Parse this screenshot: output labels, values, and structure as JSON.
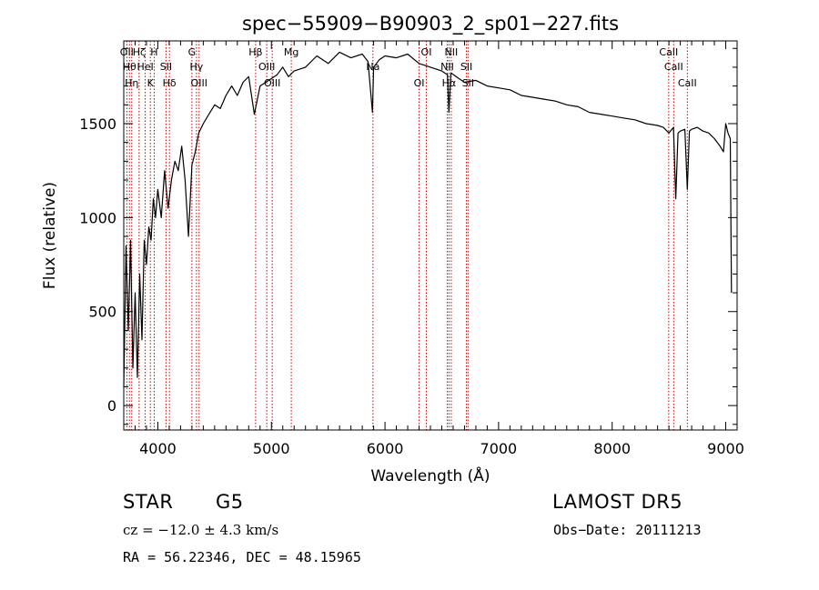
{
  "chart_data": {
    "type": "line",
    "title": "spec−55909−B90903_2_sp01−227.fits",
    "xlabel": "Wavelength (Å)",
    "ylabel": "Flux (relative)",
    "xlim": [
      3700,
      9100
    ],
    "ylim": [
      -130,
      1940
    ],
    "x_ticks": [
      4000,
      5000,
      6000,
      7000,
      8000,
      9000
    ],
    "y_ticks": [
      0,
      500,
      1000,
      1500
    ],
    "line_color": "#000000",
    "marker_color": "#cc0000",
    "grid": false,
    "series": [
      {
        "x": [
          3700,
          3720,
          3740,
          3760,
          3780,
          3800,
          3820,
          3840,
          3860,
          3880,
          3900,
          3920,
          3940,
          3960,
          3980,
          4000,
          4030,
          4060,
          4090,
          4120,
          4150,
          4180,
          4210,
          4240,
          4270,
          4300,
          4330,
          4360,
          4400,
          4450,
          4500,
          4550,
          4600,
          4650,
          4700,
          4750,
          4800,
          4850,
          4900,
          4950,
          5000,
          5050,
          5100,
          5150,
          5200,
          5300,
          5400,
          5500,
          5600,
          5700,
          5800,
          5850,
          5890,
          5900,
          5950,
          6000,
          6100,
          6200,
          6300,
          6400,
          6500,
          6550,
          6563,
          6580,
          6650,
          6700,
          6800,
          6900,
          7000,
          7100,
          7200,
          7300,
          7400,
          7500,
          7600,
          7700,
          7800,
          7900,
          8000,
          8100,
          8200,
          8300,
          8400,
          8450,
          8500,
          8540,
          8560,
          8580,
          8600,
          8640,
          8662,
          8680,
          8700,
          8750,
          8800,
          8850,
          8900,
          8950,
          8980,
          9000,
          9020,
          9040,
          9050
        ],
        "y": [
          100,
          850,
          400,
          880,
          200,
          600,
          150,
          700,
          350,
          880,
          750,
          950,
          880,
          1100,
          1000,
          1150,
          1000,
          1250,
          1050,
          1200,
          1300,
          1250,
          1380,
          1200,
          900,
          1280,
          1350,
          1450,
          1500,
          1550,
          1600,
          1580,
          1650,
          1700,
          1650,
          1720,
          1750,
          1550,
          1700,
          1720,
          1740,
          1760,
          1800,
          1750,
          1780,
          1800,
          1860,
          1820,
          1880,
          1850,
          1870,
          1830,
          1560,
          1800,
          1840,
          1860,
          1850,
          1870,
          1820,
          1800,
          1780,
          1760,
          1560,
          1770,
          1740,
          1720,
          1730,
          1700,
          1690,
          1680,
          1650,
          1640,
          1630,
          1620,
          1600,
          1590,
          1560,
          1550,
          1540,
          1530,
          1520,
          1500,
          1490,
          1480,
          1450,
          1480,
          1100,
          1450,
          1460,
          1470,
          1150,
          1460,
          1470,
          1480,
          1460,
          1450,
          1420,
          1380,
          1350,
          1500,
          1450,
          1420,
          600
        ]
      }
    ],
    "line_markers": [
      {
        "x": 3727,
        "label": "OII"
      },
      {
        "x": 3750,
        "label": "Hθ"
      },
      {
        "x": 3770,
        "label": "Hη"
      },
      {
        "x": 3835,
        "label": "Hζ"
      },
      {
        "x": 3889,
        "label": "HeI"
      },
      {
        "x": 3934,
        "label": "K"
      },
      {
        "x": 3968,
        "label": "H"
      },
      {
        "x": 4072,
        "label": "SII"
      },
      {
        "x": 4102,
        "label": "Hδ"
      },
      {
        "x": 4300,
        "label": "G"
      },
      {
        "x": 4340,
        "label": "Hγ"
      },
      {
        "x": 4363,
        "label": "OIII"
      },
      {
        "x": 4861,
        "label": "Hβ"
      },
      {
        "x": 4959,
        "label": "OIII"
      },
      {
        "x": 5007,
        "label": "OIII"
      },
      {
        "x": 5175,
        "label": "Mg"
      },
      {
        "x": 5894,
        "label": "Na"
      },
      {
        "x": 6300,
        "label": "OI"
      },
      {
        "x": 6364,
        "label": "OI"
      },
      {
        "x": 6548,
        "label": "NII"
      },
      {
        "x": 6563,
        "label": "Hα"
      },
      {
        "x": 6583,
        "label": "NII"
      },
      {
        "x": 6717,
        "label": "SII"
      },
      {
        "x": 6731,
        "label": "SII"
      },
      {
        "x": 8498,
        "label": "CaII"
      },
      {
        "x": 8542,
        "label": "CaII"
      },
      {
        "x": 8662,
        "label": "CaII"
      }
    ]
  },
  "info": {
    "object_class": "STAR",
    "subclass": "G5",
    "survey": "LAMOST DR5",
    "redshift": "cz = −12.0 ± 4.3 km/s",
    "obs_date": "Obs−Date: 20111213",
    "coords": "RA = 56.22346, DEC = 48.15965"
  }
}
